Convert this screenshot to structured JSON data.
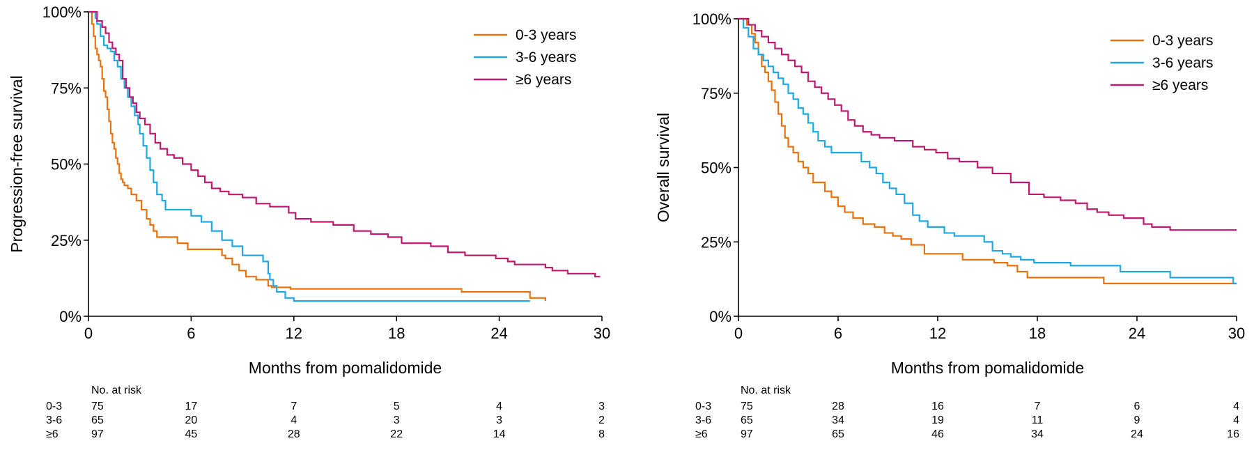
{
  "chart_data": [
    {
      "type": "line",
      "subtype": "kaplan-meier",
      "title": "",
      "xlabel": "Months from pomalidomide",
      "ylabel": "Progression-free survival",
      "xlim": [
        0,
        30
      ],
      "ylim": [
        0,
        100
      ],
      "xticks": [
        "0",
        "6",
        "12",
        "18",
        "24",
        "30"
      ],
      "yticks": [
        "0%",
        "25%",
        "50%",
        "75%",
        "100%"
      ],
      "legend_position": "top-right",
      "series": [
        {
          "name": "0-3 years",
          "color": "#E8720C",
          "x": [
            0,
            0.2,
            0.3,
            0.4,
            0.5,
            0.6,
            0.7,
            0.8,
            0.9,
            1.0,
            1.1,
            1.2,
            1.3,
            1.4,
            1.5,
            1.6,
            1.7,
            1.8,
            1.9,
            2.0,
            2.1,
            2.3,
            2.5,
            2.8,
            3.1,
            3.4,
            3.6,
            3.8,
            4.0,
            5.2,
            5.8,
            7.8,
            8.0,
            8.4,
            8.8,
            9.2,
            9.8,
            10.5,
            10.7,
            11.8,
            21.8,
            25.8,
            26.7
          ],
          "y": [
            100,
            96,
            92,
            88,
            86,
            84,
            82,
            78,
            74,
            72,
            68,
            64,
            60,
            57,
            55,
            52,
            50,
            47,
            45,
            44,
            43,
            42,
            40,
            38,
            35,
            32,
            30,
            28,
            26,
            24,
            22,
            20,
            19,
            17,
            15,
            13,
            12,
            10,
            9.5,
            9,
            8,
            6,
            5
          ]
        },
        {
          "name": "3-6 years",
          "color": "#1EA8E4",
          "x": [
            0,
            0.4,
            0.5,
            0.7,
            0.9,
            1.1,
            1.3,
            1.5,
            1.7,
            1.9,
            2.1,
            2.3,
            2.5,
            2.7,
            2.9,
            3.0,
            3.2,
            3.4,
            3.6,
            3.8,
            4.0,
            4.3,
            4.5,
            6.0,
            6.6,
            7.2,
            7.8,
            8.4,
            9.0,
            10.2,
            10.5,
            10.6,
            10.8,
            11.0,
            11.5,
            12.0,
            25.8
          ],
          "y": [
            100,
            98,
            96,
            92,
            89,
            88,
            87,
            84,
            82,
            78,
            75,
            72,
            69,
            66,
            63,
            60,
            56,
            52,
            48,
            44,
            40,
            38,
            35,
            33,
            31,
            28,
            25,
            23,
            20,
            18,
            14,
            12,
            10,
            8,
            6,
            5,
            5
          ]
        },
        {
          "name": "≥6 years",
          "color": "#C0186E",
          "x": [
            0,
            0.5,
            0.8,
            1.0,
            1.2,
            1.4,
            1.6,
            1.8,
            2.0,
            2.2,
            2.4,
            2.6,
            2.8,
            3.0,
            3.3,
            3.6,
            3.9,
            4.2,
            4.6,
            5.0,
            5.5,
            6.0,
            6.4,
            6.8,
            7.2,
            7.7,
            8.2,
            9.0,
            9.8,
            10.6,
            11.7,
            12.1,
            13.0,
            14.3,
            15.5,
            16.5,
            17.5,
            18.3,
            18.6,
            20.0,
            21.0,
            22.0,
            23.0,
            23.8,
            24.5,
            24.9,
            26.7,
            27.1,
            28.0,
            29.6,
            29.9
          ],
          "y": [
            100,
            97,
            95,
            93,
            90,
            88,
            86,
            84,
            78,
            75,
            72,
            70,
            67,
            65,
            63,
            60,
            57,
            55,
            53,
            52,
            50,
            48,
            46,
            44,
            42,
            41,
            40,
            39,
            37,
            36,
            34,
            32,
            31,
            30,
            28,
            27,
            26,
            24,
            24,
            23,
            21,
            20,
            20,
            19,
            18,
            17,
            16,
            15,
            14,
            13,
            13
          ]
        }
      ],
      "risk_table": {
        "header": "No. at risk",
        "time_points": [
          0,
          6,
          12,
          18,
          24,
          30
        ],
        "rows": [
          {
            "group": "0-3",
            "values": [
              "75",
              "17",
              "7",
              "5",
              "4",
              "3"
            ]
          },
          {
            "group": "3-6",
            "values": [
              "65",
              "20",
              "4",
              "3",
              "3",
              "2"
            ]
          },
          {
            "group": "≥6",
            "values": [
              "97",
              "45",
              "28",
              "22",
              "14",
              "8"
            ]
          }
        ]
      }
    },
    {
      "type": "line",
      "subtype": "kaplan-meier",
      "title": "",
      "xlabel": "Months from pomalidomide",
      "ylabel": "Overall survival",
      "xlim": [
        0,
        30
      ],
      "ylim": [
        0,
        100
      ],
      "xticks": [
        "0",
        "6",
        "12",
        "18",
        "24",
        "30"
      ],
      "yticks": [
        "0%",
        "25%",
        "50%",
        "75%",
        "100%"
      ],
      "legend_position": "top-right",
      "series": [
        {
          "name": "0-3 years",
          "color": "#E8720C",
          "x": [
            0,
            0.5,
            0.8,
            1.0,
            1.2,
            1.4,
            1.6,
            1.8,
            2.0,
            2.2,
            2.4,
            2.6,
            2.8,
            3.0,
            3.3,
            3.6,
            3.9,
            4.2,
            4.5,
            5.2,
            5.6,
            6.0,
            6.4,
            6.9,
            7.5,
            8.2,
            8.8,
            9.3,
            9.8,
            10.4,
            11.2,
            13.5,
            15.4,
            16.2,
            16.8,
            17.4,
            22.0,
            30.0
          ],
          "y": [
            100,
            98,
            95,
            92,
            88,
            84,
            82,
            79,
            76,
            72,
            68,
            64,
            60,
            57,
            55,
            52,
            50,
            48,
            45,
            42,
            40,
            37,
            35,
            33,
            31,
            30,
            28,
            27,
            26,
            24,
            21,
            19,
            18,
            17,
            15,
            13,
            11,
            11
          ]
        },
        {
          "name": "3-6 years",
          "color": "#1EA8E4",
          "x": [
            0,
            0.3,
            0.6,
            0.9,
            1.2,
            1.5,
            1.8,
            2.1,
            2.4,
            2.7,
            3.0,
            3.3,
            3.6,
            3.9,
            4.2,
            4.5,
            4.8,
            5.2,
            5.6,
            7.4,
            7.9,
            8.3,
            8.7,
            9.1,
            9.5,
            10.0,
            10.5,
            10.9,
            11.4,
            12.4,
            13.0,
            14.8,
            15.3,
            15.9,
            16.4,
            17.0,
            17.8,
            20.0,
            23.0,
            26.0,
            29.8,
            30.0
          ],
          "y": [
            100,
            97,
            94,
            90,
            88,
            86,
            84,
            82,
            80,
            78,
            75,
            73,
            70,
            68,
            65,
            62,
            59,
            57,
            55,
            52,
            50,
            48,
            45,
            43,
            41,
            38,
            34,
            32,
            30,
            28,
            27,
            25,
            22,
            21,
            20,
            19,
            18,
            17,
            15,
            13,
            11,
            11
          ]
        },
        {
          "name": "≥6 years",
          "color": "#C0186E",
          "x": [
            0,
            0.6,
            1.0,
            1.4,
            1.8,
            2.2,
            2.6,
            3.0,
            3.4,
            3.8,
            4.2,
            4.6,
            5.0,
            5.4,
            5.8,
            6.2,
            6.6,
            7.0,
            7.5,
            8.0,
            8.5,
            9.4,
            10.5,
            11.2,
            11.9,
            12.6,
            13.3,
            14.4,
            15.3,
            16.4,
            17.5,
            18.4,
            19.4,
            20.3,
            21.0,
            21.6,
            22.3,
            23.2,
            24.4,
            24.9,
            26.0,
            30.0
          ],
          "y": [
            100,
            98,
            96,
            94,
            92,
            90,
            88,
            86,
            84,
            82,
            79,
            77,
            75,
            73,
            71,
            69,
            66,
            64,
            62,
            61,
            60,
            59,
            57,
            56,
            55,
            53,
            52,
            50,
            48,
            45,
            41,
            40,
            39,
            38,
            36,
            35,
            34,
            33,
            31,
            30,
            29,
            29
          ]
        }
      ],
      "risk_table": {
        "header": "No. at risk",
        "time_points": [
          0,
          6,
          12,
          18,
          24,
          30
        ],
        "rows": [
          {
            "group": "0-3",
            "values": [
              "75",
              "28",
              "16",
              "7",
              "6",
              "4"
            ]
          },
          {
            "group": "3-6",
            "values": [
              "65",
              "34",
              "19",
              "11",
              "9",
              "4"
            ]
          },
          {
            "group": "≥6",
            "values": [
              "97",
              "65",
              "46",
              "34",
              "24",
              "16"
            ]
          }
        ]
      }
    }
  ]
}
